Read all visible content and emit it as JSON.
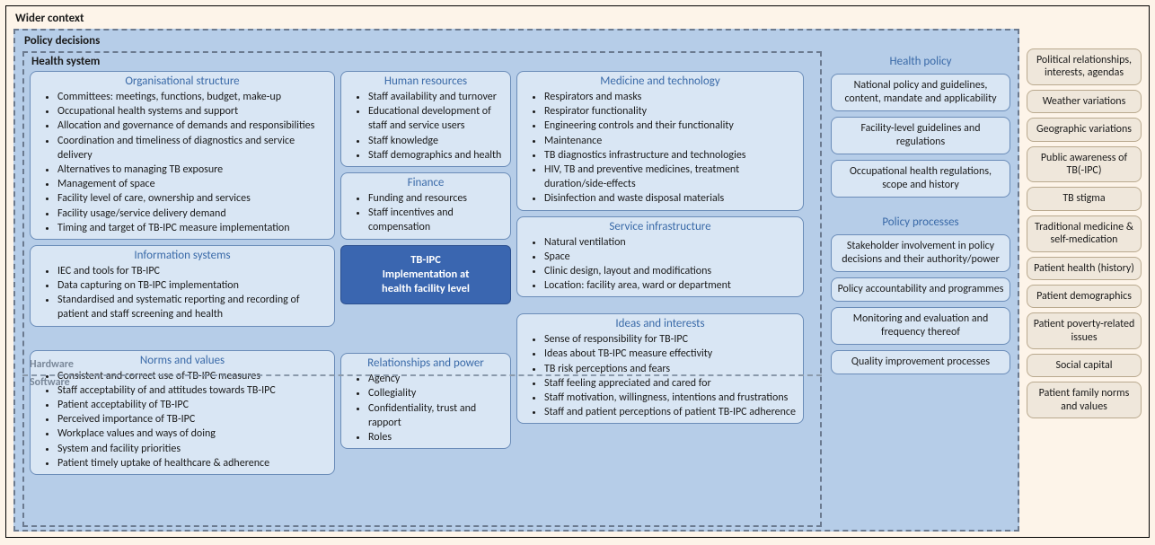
{
  "colors": {
    "page_bg": "#fdf4e9",
    "policy_bg": "#b6cde8",
    "panel_bg": "#d9e6f4",
    "panel_border": "#6a8cb8",
    "dashed_border": "#6b7a8f",
    "title_color": "#3a6aa8",
    "center_bg": "#3a66b0",
    "ctx_bg": "#efe7db",
    "ctx_border": "#b9a98e"
  },
  "labels": {
    "wider_context": "Wider context",
    "policy_decisions": "Policy decisions",
    "health_system": "Health system",
    "hardware": "Hardware",
    "software": "Software",
    "center_line1": "TB-IPC",
    "center_line2": "Implementation at",
    "center_line3": "health facility level"
  },
  "health_system": {
    "org_structure": {
      "title": "Organisational structure",
      "items": [
        "Committees: meetings, functions, budget, make-up",
        "Occupational health systems and support",
        "Allocation and governance of demands and responsibilities",
        "Coordination and timeliness of diagnostics and service delivery",
        "Alternatives to managing TB exposure",
        "Management of space",
        "Facility level of care, ownership and services",
        "Facility usage/service delivery demand",
        "Timing and target of TB-IPC measure implementation"
      ]
    },
    "info_systems": {
      "title": "Information systems",
      "items": [
        "IEC and tools for TB-IPC",
        "Data capturing on TB-IPC implementation",
        "Standardised and systematic reporting and recording of patient and staff screening and health"
      ]
    },
    "human_resources": {
      "title": "Human resources",
      "items": [
        "Staff availability and turnover",
        "Educational development of staff and service users",
        "Staff knowledge",
        "Staff demographics and health"
      ]
    },
    "finance": {
      "title": "Finance",
      "items": [
        "Funding and resources",
        "Staff incentives and compensation"
      ]
    },
    "medicine_tech": {
      "title": "Medicine and technology",
      "items": [
        "Respirators and masks",
        "Respirator functionality",
        "Engineering controls and their functionality",
        "Maintenance",
        "TB diagnostics infrastructure and technologies",
        "HIV, TB and preventive medicines, treatment duration/side-effects",
        "Disinfection and waste disposal materials"
      ]
    },
    "service_infra": {
      "title": "Service infrastructure",
      "items": [
        "Natural ventilation",
        "Space",
        "Clinic design, layout and modifications",
        "Location: facility area, ward or department"
      ]
    },
    "norms_values": {
      "title": "Norms and values",
      "items": [
        "Consistent and correct use of TB-IPC measures",
        "Staff acceptability of and attitudes towards TB-IPC",
        "Patient acceptability of TB-IPC",
        "Perceived importance of TB-IPC",
        "Workplace values and ways of doing",
        "System and facility priorities",
        "Patient timely uptake of healthcare & adherence"
      ]
    },
    "relationships_power": {
      "title": "Relationships and power",
      "items": [
        "Agency",
        "Collegiality",
        "Confidentiality, trust and rapport",
        "Roles"
      ]
    },
    "ideas_interests": {
      "title": "Ideas and interests",
      "items": [
        "Sense of responsibility for TB-IPC",
        "Ideas about TB-IPC measure effectivity",
        "TB risk perceptions and fears",
        "Staff feeling appreciated and cared for",
        "Staff motivation, willingness, intentions and frustrations",
        "Staff and patient perceptions of patient TB-IPC adherence"
      ]
    }
  },
  "policy_side": {
    "health_policy": {
      "heading": "Health policy",
      "items": [
        "National policy and guidelines, content, mandate and applicability",
        "Facility-level guidelines and regulations",
        "Occupational health regulations, scope and history"
      ]
    },
    "policy_processes": {
      "heading": "Policy processes",
      "items": [
        "Stakeholder involvement in policy decisions and their authority/power",
        "Policy accountability and programmes",
        "Monitoring and evaluation and frequency thereof",
        "Quality improvement processes"
      ]
    }
  },
  "context_side": [
    "Political relationships, interests, agendas",
    "Weather variations",
    "Geographic variations",
    "Public awareness of TB(-IPC)",
    "TB stigma",
    "Traditional medicine & self-medication",
    "Patient health (history)",
    "Patient demographics",
    "Patient poverty-related issues",
    "Social capital",
    "Patient family norms and values"
  ]
}
